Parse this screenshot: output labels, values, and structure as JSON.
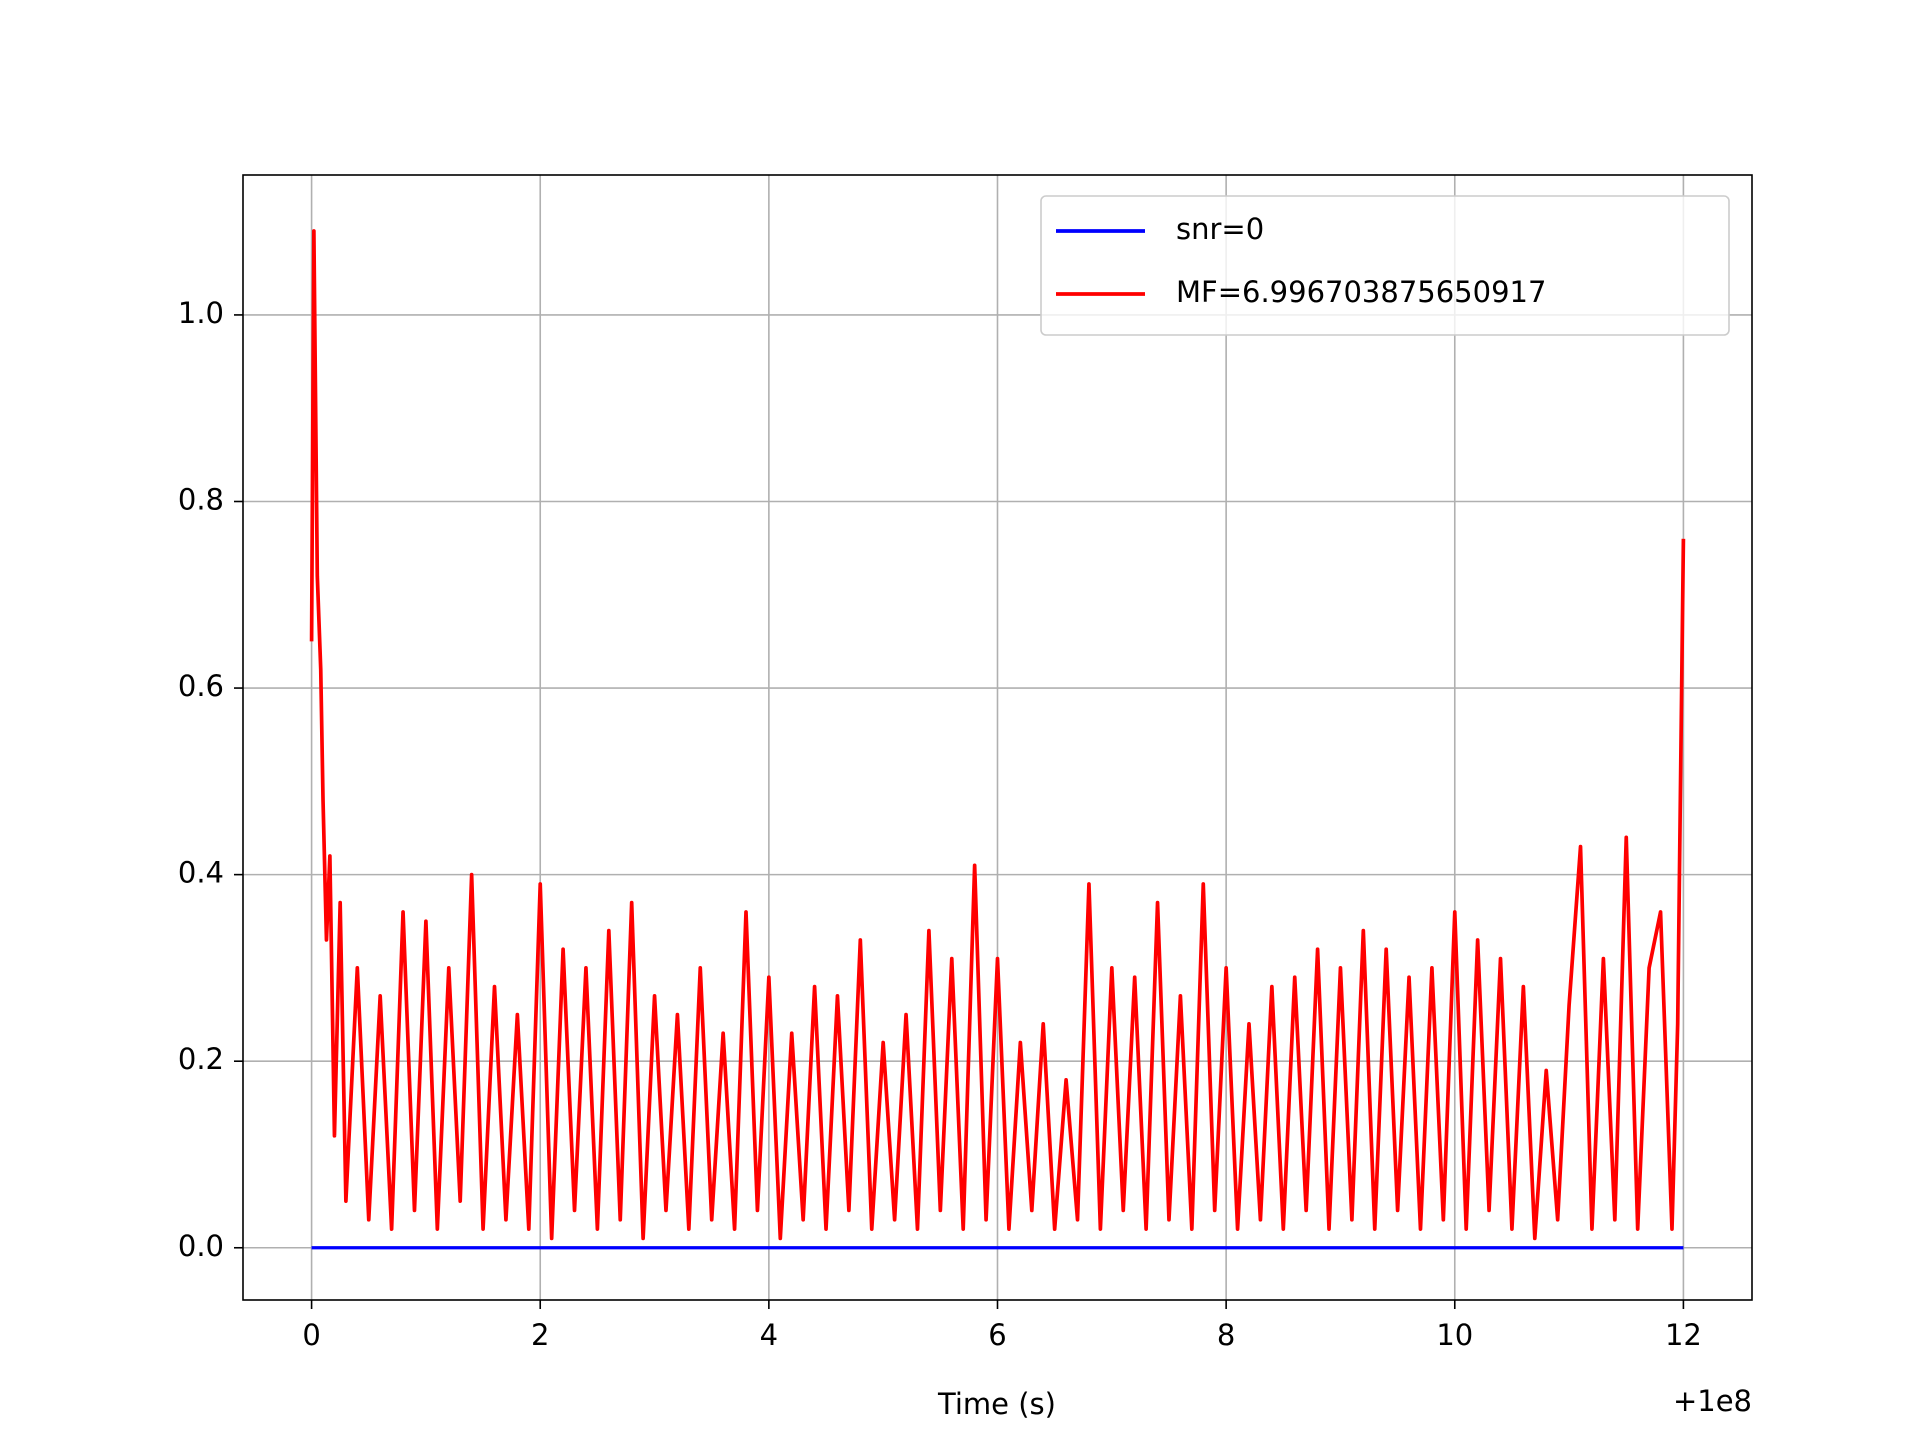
{
  "chart_data": {
    "type": "line",
    "xlabel": "Time (s)",
    "x_offset_label": "+1e8",
    "xlim": [
      -0.6,
      12.6
    ],
    "xticks": [
      0,
      2,
      4,
      6,
      8,
      10,
      12
    ],
    "ylim": [
      -0.056,
      1.15
    ],
    "yticks": [
      {
        "value": 0,
        "label": "0.0"
      },
      0.2,
      0.4,
      0.6,
      0.8,
      {
        "value": 1,
        "label": "1.0"
      }
    ],
    "grid": true,
    "legend": "upper right",
    "series": [
      {
        "name": "snr=0",
        "color": "#0000ff",
        "x": [
          0,
          12
        ],
        "values": [
          0,
          0
        ]
      },
      {
        "name": "MF=6.996703875650917",
        "color": "#ff0000",
        "x": [
          0,
          0.02,
          0.05,
          0.08,
          0.1,
          0.13,
          0.16,
          0.2,
          0.25,
          0.3,
          0.4,
          0.5,
          0.6,
          0.7,
          0.8,
          0.9,
          1.0,
          1.1,
          1.2,
          1.3,
          1.4,
          1.5,
          1.6,
          1.7,
          1.8,
          1.9,
          2.0,
          2.1,
          2.2,
          2.3,
          2.4,
          2.5,
          2.6,
          2.7,
          2.8,
          2.9,
          3.0,
          3.1,
          3.2,
          3.3,
          3.4,
          3.5,
          3.6,
          3.7,
          3.8,
          3.9,
          4.0,
          4.1,
          4.2,
          4.3,
          4.4,
          4.5,
          4.6,
          4.7,
          4.8,
          4.9,
          5.0,
          5.1,
          5.2,
          5.3,
          5.4,
          5.5,
          5.6,
          5.7,
          5.8,
          5.9,
          6.0,
          6.1,
          6.2,
          6.3,
          6.4,
          6.5,
          6.6,
          6.7,
          6.8,
          6.9,
          7.0,
          7.1,
          7.2,
          7.3,
          7.4,
          7.5,
          7.6,
          7.7,
          7.8,
          7.9,
          8.0,
          8.1,
          8.2,
          8.3,
          8.4,
          8.5,
          8.6,
          8.7,
          8.8,
          8.9,
          9.0,
          9.1,
          9.2,
          9.3,
          9.4,
          9.5,
          9.6,
          9.7,
          9.8,
          9.9,
          10.0,
          10.1,
          10.2,
          10.3,
          10.4,
          10.5,
          10.6,
          10.7,
          10.8,
          10.9,
          11.0,
          11.1,
          11.2,
          11.3,
          11.4,
          11.5,
          11.6,
          11.7,
          11.8,
          11.9,
          11.95,
          12.0
        ],
        "values": [
          0.65,
          1.09,
          0.72,
          0.62,
          0.48,
          0.33,
          0.42,
          0.12,
          0.37,
          0.05,
          0.3,
          0.03,
          0.27,
          0.02,
          0.36,
          0.04,
          0.35,
          0.02,
          0.3,
          0.05,
          0.4,
          0.02,
          0.28,
          0.03,
          0.25,
          0.02,
          0.39,
          0.01,
          0.32,
          0.04,
          0.3,
          0.02,
          0.34,
          0.03,
          0.37,
          0.01,
          0.27,
          0.04,
          0.25,
          0.02,
          0.3,
          0.03,
          0.23,
          0.02,
          0.36,
          0.04,
          0.29,
          0.01,
          0.23,
          0.03,
          0.28,
          0.02,
          0.27,
          0.04,
          0.33,
          0.02,
          0.22,
          0.03,
          0.25,
          0.02,
          0.34,
          0.04,
          0.31,
          0.02,
          0.41,
          0.03,
          0.31,
          0.02,
          0.22,
          0.04,
          0.24,
          0.02,
          0.18,
          0.03,
          0.39,
          0.02,
          0.3,
          0.04,
          0.29,
          0.02,
          0.37,
          0.03,
          0.27,
          0.02,
          0.39,
          0.04,
          0.3,
          0.02,
          0.24,
          0.03,
          0.28,
          0.02,
          0.29,
          0.04,
          0.32,
          0.02,
          0.3,
          0.03,
          0.34,
          0.02,
          0.32,
          0.04,
          0.29,
          0.02,
          0.3,
          0.03,
          0.36,
          0.02,
          0.33,
          0.04,
          0.31,
          0.02,
          0.28,
          0.01,
          0.19,
          0.03,
          0.26,
          0.43,
          0.02,
          0.31,
          0.03,
          0.44,
          0.02,
          0.3,
          0.36,
          0.02,
          0.24,
          0.76
        ]
      }
    ]
  }
}
